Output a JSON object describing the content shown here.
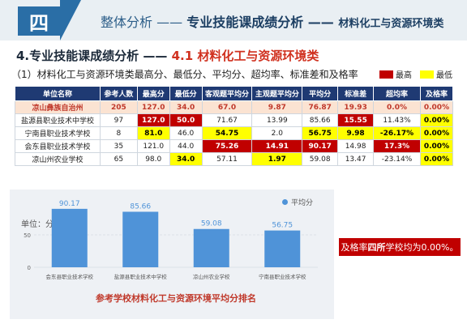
{
  "header": {
    "badge": "四",
    "title_part1": "整体分析 —— ",
    "title_part2": "专业技能课成绩分析 —— ",
    "title_part3": "材料化工与资源环境类"
  },
  "section": {
    "title_prefix": "4.专业技能课成绩分析 —— ",
    "title_highlight": "4.1 材料化工与资源环境类"
  },
  "subtitle": "（1）材料化工与资源环境类最高分、最低分、平均分、超均率、标准差和及格率",
  "legend": {
    "max_label": "最高",
    "min_label": "最低",
    "max_color": "#c00000",
    "min_color": "#ffff00"
  },
  "table": {
    "headers": [
      "单位名称",
      "参考人数",
      "最高分",
      "最低分",
      "客观题平均分",
      "主观题平均分",
      "平均分",
      "标准差",
      "超均率",
      "及格率"
    ],
    "rows": [
      {
        "cells": [
          "凉山彝族自治州",
          "205",
          "127.0",
          "34.0",
          "67.0",
          "9.87",
          "76.87",
          "19.93",
          "0.0%",
          "0.00%"
        ],
        "max": [],
        "min": []
      },
      {
        "cells": [
          "盐源县职业技术中学校",
          "97",
          "127.0",
          "50.0",
          "71.67",
          "13.99",
          "85.66",
          "15.55",
          "11.43%",
          "0.00%"
        ],
        "max": [
          2,
          3,
          7
        ],
        "min": [
          9
        ]
      },
      {
        "cells": [
          "宁南县职业技术学校",
          "8",
          "81.0",
          "46.0",
          "54.75",
          "2.0",
          "56.75",
          "9.98",
          "-26.17%",
          "0.00%"
        ],
        "max": [],
        "min": [
          2,
          4,
          6,
          7,
          8,
          9
        ]
      },
      {
        "cells": [
          "会东县职业技术学校",
          "35",
          "121.0",
          "44.0",
          "75.26",
          "14.91",
          "90.17",
          "14.98",
          "17.3%",
          "0.00%"
        ],
        "max": [
          4,
          5,
          6,
          8
        ],
        "min": [
          9
        ]
      },
      {
        "cells": [
          "凉山州农业学校",
          "65",
          "98.0",
          "34.0",
          "57.11",
          "1.97",
          "59.08",
          "13.47",
          "-23.14%",
          "0.00%"
        ],
        "max": [],
        "min": [
          3,
          5,
          9
        ]
      }
    ]
  },
  "chart": {
    "unit_label": "单位：分",
    "legend_label": "平均分",
    "title": "参考学校材料化工与资源环境平均分排名",
    "bar_color": "#4f93d8"
  },
  "chart_data": {
    "type": "bar",
    "categories": [
      "会东县职业技术学校",
      "盐源县职业技术中学校",
      "凉山州农业学校",
      "宁南县职业技术学校"
    ],
    "series": [
      {
        "name": "平均分",
        "values": [
          90.17,
          85.66,
          59.08,
          56.75
        ]
      }
    ],
    "yticks": [
      0,
      50
    ],
    "ylim": [
      0,
      100
    ],
    "ylabel": "单位：分",
    "title": "参考学校材料化工与资源环境平均分排名",
    "legend_position": "top-right"
  },
  "callout": {
    "before": "及格率",
    "bold": "四所",
    "after": "学校均为0.00%。"
  }
}
